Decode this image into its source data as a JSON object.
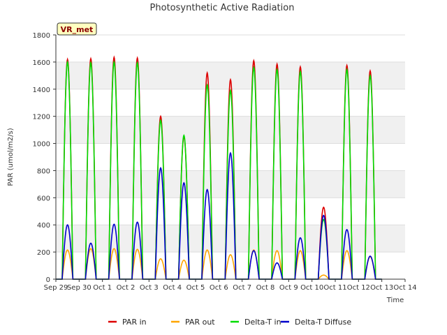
{
  "chart_data": {
    "type": "line",
    "title": "Photosynthetic Active Radiation",
    "xlabel": "Time",
    "ylabel": "PAR (umol/m2/s)",
    "ylim": [
      0,
      1800
    ],
    "yticks": [
      0,
      200,
      400,
      600,
      800,
      1000,
      1200,
      1400,
      1600,
      1800
    ],
    "xlim": [
      0,
      15
    ],
    "xtick_labels": [
      "Sep 29",
      "Sep 30",
      "Oct 1",
      "Oct 2",
      "Oct 3",
      "Oct 4",
      "Oct 5",
      "Oct 6",
      "Oct 7",
      "Oct 8",
      "Oct 9",
      "Oct 10",
      "Oct 11",
      "Oct 12",
      "Oct 13",
      "Oct 14"
    ],
    "site_badge": "VR_met",
    "grid": "horizontal bands",
    "legend_position": "bottom",
    "daylight_hours": [
      0.27,
      0.73
    ],
    "series": [
      {
        "name": "PAR in",
        "color": "#dd0000",
        "daily_peak": [
          1620,
          1625,
          1635,
          1630,
          1200,
          1050,
          1520,
          1470,
          1610,
          1585,
          1565,
          530,
          1575,
          1535
        ]
      },
      {
        "name": "PAR out",
        "color": "#ffa500",
        "daily_peak": [
          215,
          225,
          225,
          220,
          150,
          140,
          215,
          180,
          215,
          210,
          210,
          30,
          210,
          165
        ]
      },
      {
        "name": "Delta-T in",
        "color": "#00dd00",
        "daily_peak": [
          1600,
          1595,
          1600,
          1595,
          1170,
          1060,
          1430,
          1390,
          1560,
          1545,
          1530,
          440,
          1545,
          1500
        ]
      },
      {
        "name": "Delta-T Diffuse",
        "color": "#0000cc",
        "daily_peak": [
          400,
          265,
          405,
          420,
          820,
          710,
          660,
          930,
          210,
          120,
          305,
          470,
          365,
          170
        ]
      }
    ]
  }
}
